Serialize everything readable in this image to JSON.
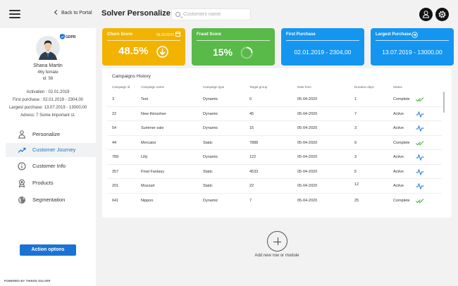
{
  "topbar": {
    "back_label": "Back to Portal",
    "title": "Solver Personalize",
    "search_placeholder": "Customers name"
  },
  "profile": {
    "gdpr": "GDPR",
    "name": "Shana Martin",
    "subtitle": "46y female",
    "id": "id: 56",
    "activation": "Activation : 02.01.2019",
    "first_purchase": "First purchase : 02.01.2019 -  2304,00",
    "largest_purchase": "Largest purchase: 13.07.2019 - 13000,00",
    "address": "Adress: 7 Some Important  st."
  },
  "nav": [
    {
      "label": "Personalize",
      "icon": "person-icon"
    },
    {
      "label": "Customer Journey",
      "icon": "trend-icon",
      "active": true
    },
    {
      "label": "Customer Info",
      "icon": "info-icon"
    },
    {
      "label": "Products",
      "icon": "badge-icon"
    },
    {
      "label": "Segmentation",
      "icon": "globe-icon"
    }
  ],
  "action_button": "Action optons",
  "powered": "POWERED BY THINGS SOLVER",
  "cards": {
    "churn": {
      "title": "Churn Score",
      "date": "06.30.2020",
      "value": "48.5%",
      "color": "#f1b300"
    },
    "fraud": {
      "title": "Fraud Score",
      "value": "15%",
      "color": "#59b949"
    },
    "first": {
      "title": "First Purchase",
      "value": "02.01.2019 -  2304,00",
      "color": "#1496f0"
    },
    "largest": {
      "title": "Largest Purchase",
      "value": "13.07.2019 - 13000,00",
      "color": "#1496f0"
    }
  },
  "campaigns": {
    "title": "Campaigns History",
    "columns": [
      "Campaign id",
      "Campaign name",
      "Campaign type",
      "Target group",
      "Date from",
      "Duration days",
      "Status"
    ],
    "rows": [
      {
        "id": "3",
        "name": "Test",
        "type": "Dynamic",
        "target": "0",
        "date": "05-04-2020",
        "duration": "1",
        "status": "Complete",
        "icon": "check-icon"
      },
      {
        "id": "22",
        "name": "New thinsolver",
        "type": "Dynamic",
        "target": "45",
        "date": "05-04-2020",
        "duration": "7",
        "status": "Active",
        "icon": "pulse-icon"
      },
      {
        "id": "54",
        "name": "Summer sale",
        "type": "Dynamic",
        "target": "15",
        "date": "05-04-2020",
        "duration": "3",
        "status": "Active",
        "icon": "pulse-icon"
      },
      {
        "id": "44",
        "name": "Mercator",
        "type": "Static",
        "target": "7888",
        "date": "05-04-2020",
        "duration": "9",
        "status": "Complete",
        "icon": "check-icon"
      },
      {
        "id": "789",
        "name": "Lilly",
        "type": "Dynamic",
        "target": "122",
        "date": "05-04-2020",
        "duration": "3",
        "status": "Active",
        "icon": "pulse-icon"
      },
      {
        "id": "357",
        "name": "Final Fantasy",
        "type": "Static",
        "target": "4533",
        "date": "05-04-2020",
        "duration": "5",
        "status": "Active",
        "icon": "pulse-icon"
      },
      {
        "id": "201",
        "name": "Mozzart",
        "type": "Static",
        "target": "22",
        "date": "05-04-2020",
        "duration": "12",
        "status": "Active",
        "icon": "pulse-icon"
      },
      {
        "id": "641",
        "name": "Nippon",
        "type": "Dynamic",
        "target": "7",
        "date": "05-04-2020",
        "duration": "25",
        "status": "Complete",
        "icon": "check-icon"
      }
    ]
  },
  "add_label": "Add new row or module",
  "colors": {
    "accent": "#1a73d4",
    "complete": "#3cae3c",
    "active": "#1a73d4"
  }
}
